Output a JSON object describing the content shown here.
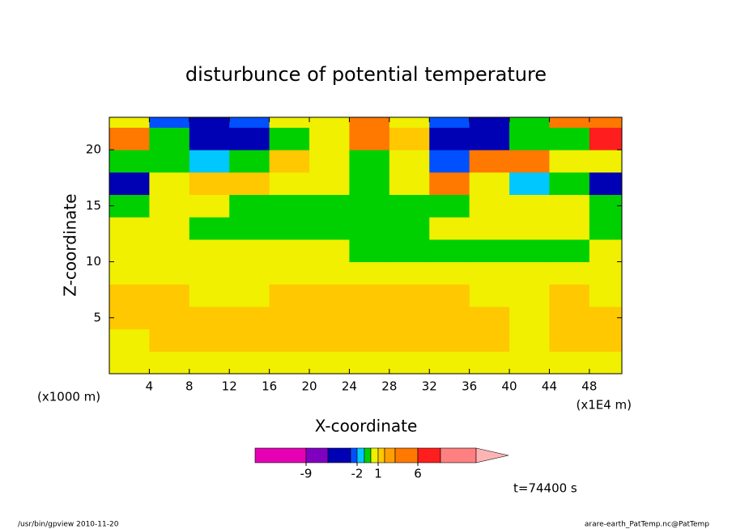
{
  "chart_data": {
    "type": "contour",
    "title": "disturbunce of potential temperature",
    "xlabel": "X-coordinate",
    "ylabel": "Z-coordinate",
    "x_unit_left": "(x1000 m)",
    "x_unit_right": "(x1E4 m)",
    "time_label": "t=74400 s",
    "footer_left": "/usr/bin/gpview  2010-11-20",
    "footer_right": "arare-earth_PatTemp.nc@PatTemp",
    "xlim": [
      0,
      51.25
    ],
    "ylim": [
      0,
      22.9
    ],
    "xticks": [
      4,
      8,
      12,
      16,
      20,
      24,
      28,
      32,
      36,
      40,
      44,
      48
    ],
    "yticks": [
      5,
      10,
      15,
      20
    ],
    "x": [
      2,
      6,
      10,
      14,
      18,
      22,
      26,
      30,
      34,
      38,
      42,
      46,
      50
    ],
    "y": [
      1,
      3,
      5,
      7,
      9,
      11,
      13,
      15,
      17,
      19,
      21,
      23
    ],
    "z": [
      [
        0.5,
        0.5,
        0.5,
        0.5,
        0.5,
        0.5,
        0.5,
        0.5,
        0.5,
        0.5,
        0.5,
        0.5,
        0.5
      ],
      [
        0.5,
        1.5,
        1.5,
        1.5,
        1.5,
        1.5,
        1.5,
        1.5,
        1.5,
        1.5,
        0.5,
        1.5,
        1.5
      ],
      [
        1.5,
        1.5,
        1.5,
        1.5,
        1.5,
        1.5,
        1.5,
        1.5,
        1.5,
        1.5,
        0.5,
        1.5,
        1.5
      ],
      [
        1.5,
        1.5,
        0.5,
        0.5,
        1.5,
        1.5,
        1.5,
        1.5,
        1.5,
        0.5,
        0.5,
        1.5,
        0.5
      ],
      [
        0.5,
        0.5,
        0.5,
        0.5,
        0.5,
        0.5,
        0.5,
        0.5,
        0.5,
        0.5,
        0.5,
        0.5,
        0.5
      ],
      [
        0.5,
        0.5,
        0.5,
        0.5,
        0.5,
        0.5,
        -0.5,
        -0.5,
        -0.5,
        -0.5,
        -0.5,
        -0.5,
        0.5
      ],
      [
        0.5,
        0.5,
        -0.5,
        -0.5,
        -0.5,
        -0.5,
        -0.5,
        -0.5,
        0.5,
        0.5,
        0.5,
        0.5,
        -0.5
      ],
      [
        -0.5,
        0.5,
        0.5,
        -0.5,
        -0.5,
        -0.5,
        -0.5,
        -0.5,
        -0.5,
        0.5,
        0.5,
        0.5,
        -0.5
      ],
      [
        -4.5,
        0.5,
        1.5,
        1.5,
        0.5,
        0.5,
        -0.5,
        0.5,
        4.5,
        0.5,
        -1.5,
        -0.5,
        -4.5
      ],
      [
        -0.5,
        -0.5,
        -1.5,
        -0.5,
        1.5,
        0.5,
        -0.5,
        0.5,
        -2.5,
        4.5,
        4.5,
        0.5,
        0.5
      ],
      [
        4.5,
        -0.5,
        -4.5,
        -4.5,
        -0.5,
        0.5,
        4.5,
        1.5,
        -4.5,
        -4.5,
        -0.5,
        -0.5,
        7.5
      ],
      [
        0.5,
        -2.5,
        -4.5,
        -2.5,
        0.5,
        0.5,
        4.5,
        0.5,
        -2.5,
        -4.5,
        -0.5,
        4.5,
        4.5
      ]
    ],
    "levels": [
      -12,
      -9,
      -6,
      -3,
      -2,
      -1,
      0,
      1,
      2,
      3,
      6,
      9,
      12
    ],
    "colors": [
      "#e600b4",
      "#8000c0",
      "#0000b4",
      "#0050ff",
      "#00c8ff",
      "#00d000",
      "#f0f000",
      "#ffc800",
      "#ffa000",
      "#ff7800",
      "#ff1e1e",
      "#ff8080"
    ],
    "extend_color": "#ffb4b4",
    "colorbar_ticks": [
      -9,
      -2,
      1,
      6
    ]
  }
}
